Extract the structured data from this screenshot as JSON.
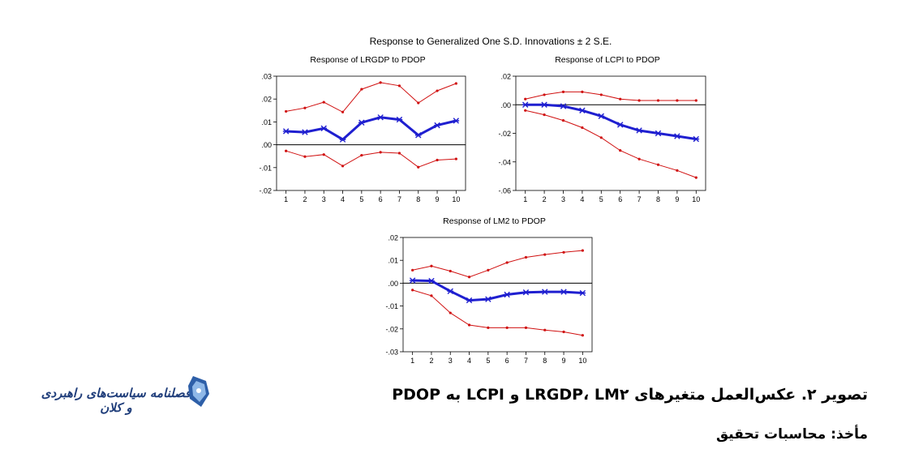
{
  "header": {
    "main_title": "Response to Generalized One S.D. Innovations ± 2 S.E."
  },
  "caption": "تصویر ۲. عکس‌العمل متغیرهای LRGDP، LM۲ و LCPI به PDOP",
  "source": "مأخذ: محاسبات تحقیق",
  "logo": {
    "text": "فصلنامه سیاست‌های راهبردی و کلان",
    "icon": "journal-logo-icon",
    "color": "#1f3d7a"
  },
  "colors": {
    "response": "#1f1fd0",
    "bands": "#d01010",
    "axis": "#000000"
  },
  "chart_data": [
    {
      "type": "line",
      "title": "Response of LRGDP to PDOP",
      "x": [
        1,
        2,
        3,
        4,
        5,
        6,
        7,
        8,
        9,
        10
      ],
      "x_tick_labels": [
        "1",
        "2",
        "3",
        "4",
        "5",
        "6",
        "7",
        "8",
        "9",
        "10"
      ],
      "ylim": [
        -0.02,
        0.03
      ],
      "y_ticks": [
        -0.02,
        -0.01,
        0.0,
        0.01,
        0.02,
        0.03
      ],
      "y_tick_labels": [
        "-.02",
        "-.01",
        ".00",
        ".01",
        ".02",
        ".03"
      ],
      "zero_line": true,
      "series": [
        {
          "role": "response",
          "values": [
            0.0059,
            0.0055,
            0.0072,
            0.0023,
            0.0097,
            0.012,
            0.011,
            0.0042,
            0.0085,
            0.0105
          ]
        },
        {
          "role": "upper",
          "values": [
            0.0146,
            0.0161,
            0.0186,
            0.0143,
            0.0243,
            0.0272,
            0.0258,
            0.0183,
            0.0236,
            0.0268
          ]
        },
        {
          "role": "lower",
          "values": [
            -0.0027,
            -0.0052,
            -0.0043,
            -0.0093,
            -0.0046,
            -0.0033,
            -0.0037,
            -0.0098,
            -0.0067,
            -0.0062
          ]
        }
      ]
    },
    {
      "type": "line",
      "title": "Response of LCPI to PDOP",
      "x": [
        1,
        2,
        3,
        4,
        5,
        6,
        7,
        8,
        9,
        10
      ],
      "x_tick_labels": [
        "1",
        "2",
        "3",
        "4",
        "5",
        "6",
        "7",
        "8",
        "9",
        "10"
      ],
      "ylim": [
        -0.06,
        0.02
      ],
      "y_ticks": [
        -0.06,
        -0.04,
        -0.02,
        0.0,
        0.02
      ],
      "y_tick_labels": [
        "-.06",
        "-.04",
        "-.02",
        ".00",
        ".02"
      ],
      "zero_line": true,
      "series": [
        {
          "role": "response",
          "values": [
            0.0,
            0.0,
            -0.001,
            -0.004,
            -0.008,
            -0.014,
            -0.018,
            -0.02,
            -0.022,
            -0.024
          ]
        },
        {
          "role": "upper",
          "values": [
            0.004,
            0.007,
            0.009,
            0.009,
            0.007,
            0.004,
            0.003,
            0.003,
            0.003,
            0.003
          ]
        },
        {
          "role": "lower",
          "values": [
            -0.004,
            -0.007,
            -0.011,
            -0.016,
            -0.023,
            -0.032,
            -0.038,
            -0.042,
            -0.046,
            -0.051
          ]
        }
      ]
    },
    {
      "type": "line",
      "title": "Response of LM2 to PDOP",
      "x": [
        1,
        2,
        3,
        4,
        5,
        6,
        7,
        8,
        9,
        10
      ],
      "x_tick_labels": [
        "1",
        "2",
        "3",
        "4",
        "5",
        "6",
        "7",
        "8",
        "9",
        "10"
      ],
      "ylim": [
        -0.03,
        0.02
      ],
      "y_ticks": [
        -0.03,
        -0.02,
        -0.01,
        0.0,
        0.01,
        0.02
      ],
      "y_tick_labels": [
        "-.03",
        "-.02",
        "-.01",
        ".00",
        ".01",
        ".02"
      ],
      "zero_line": true,
      "series": [
        {
          "role": "response",
          "values": [
            0.0012,
            0.001,
            -0.0035,
            -0.0075,
            -0.007,
            -0.005,
            -0.004,
            -0.0038,
            -0.0038,
            -0.0043
          ]
        },
        {
          "role": "upper",
          "values": [
            0.0057,
            0.0075,
            0.0053,
            0.0027,
            0.0057,
            0.009,
            0.0113,
            0.0125,
            0.0135,
            0.0143
          ]
        },
        {
          "role": "lower",
          "values": [
            -0.003,
            -0.0055,
            -0.013,
            -0.0183,
            -0.0195,
            -0.0195,
            -0.0195,
            -0.0205,
            -0.0213,
            -0.0228
          ]
        }
      ]
    }
  ]
}
